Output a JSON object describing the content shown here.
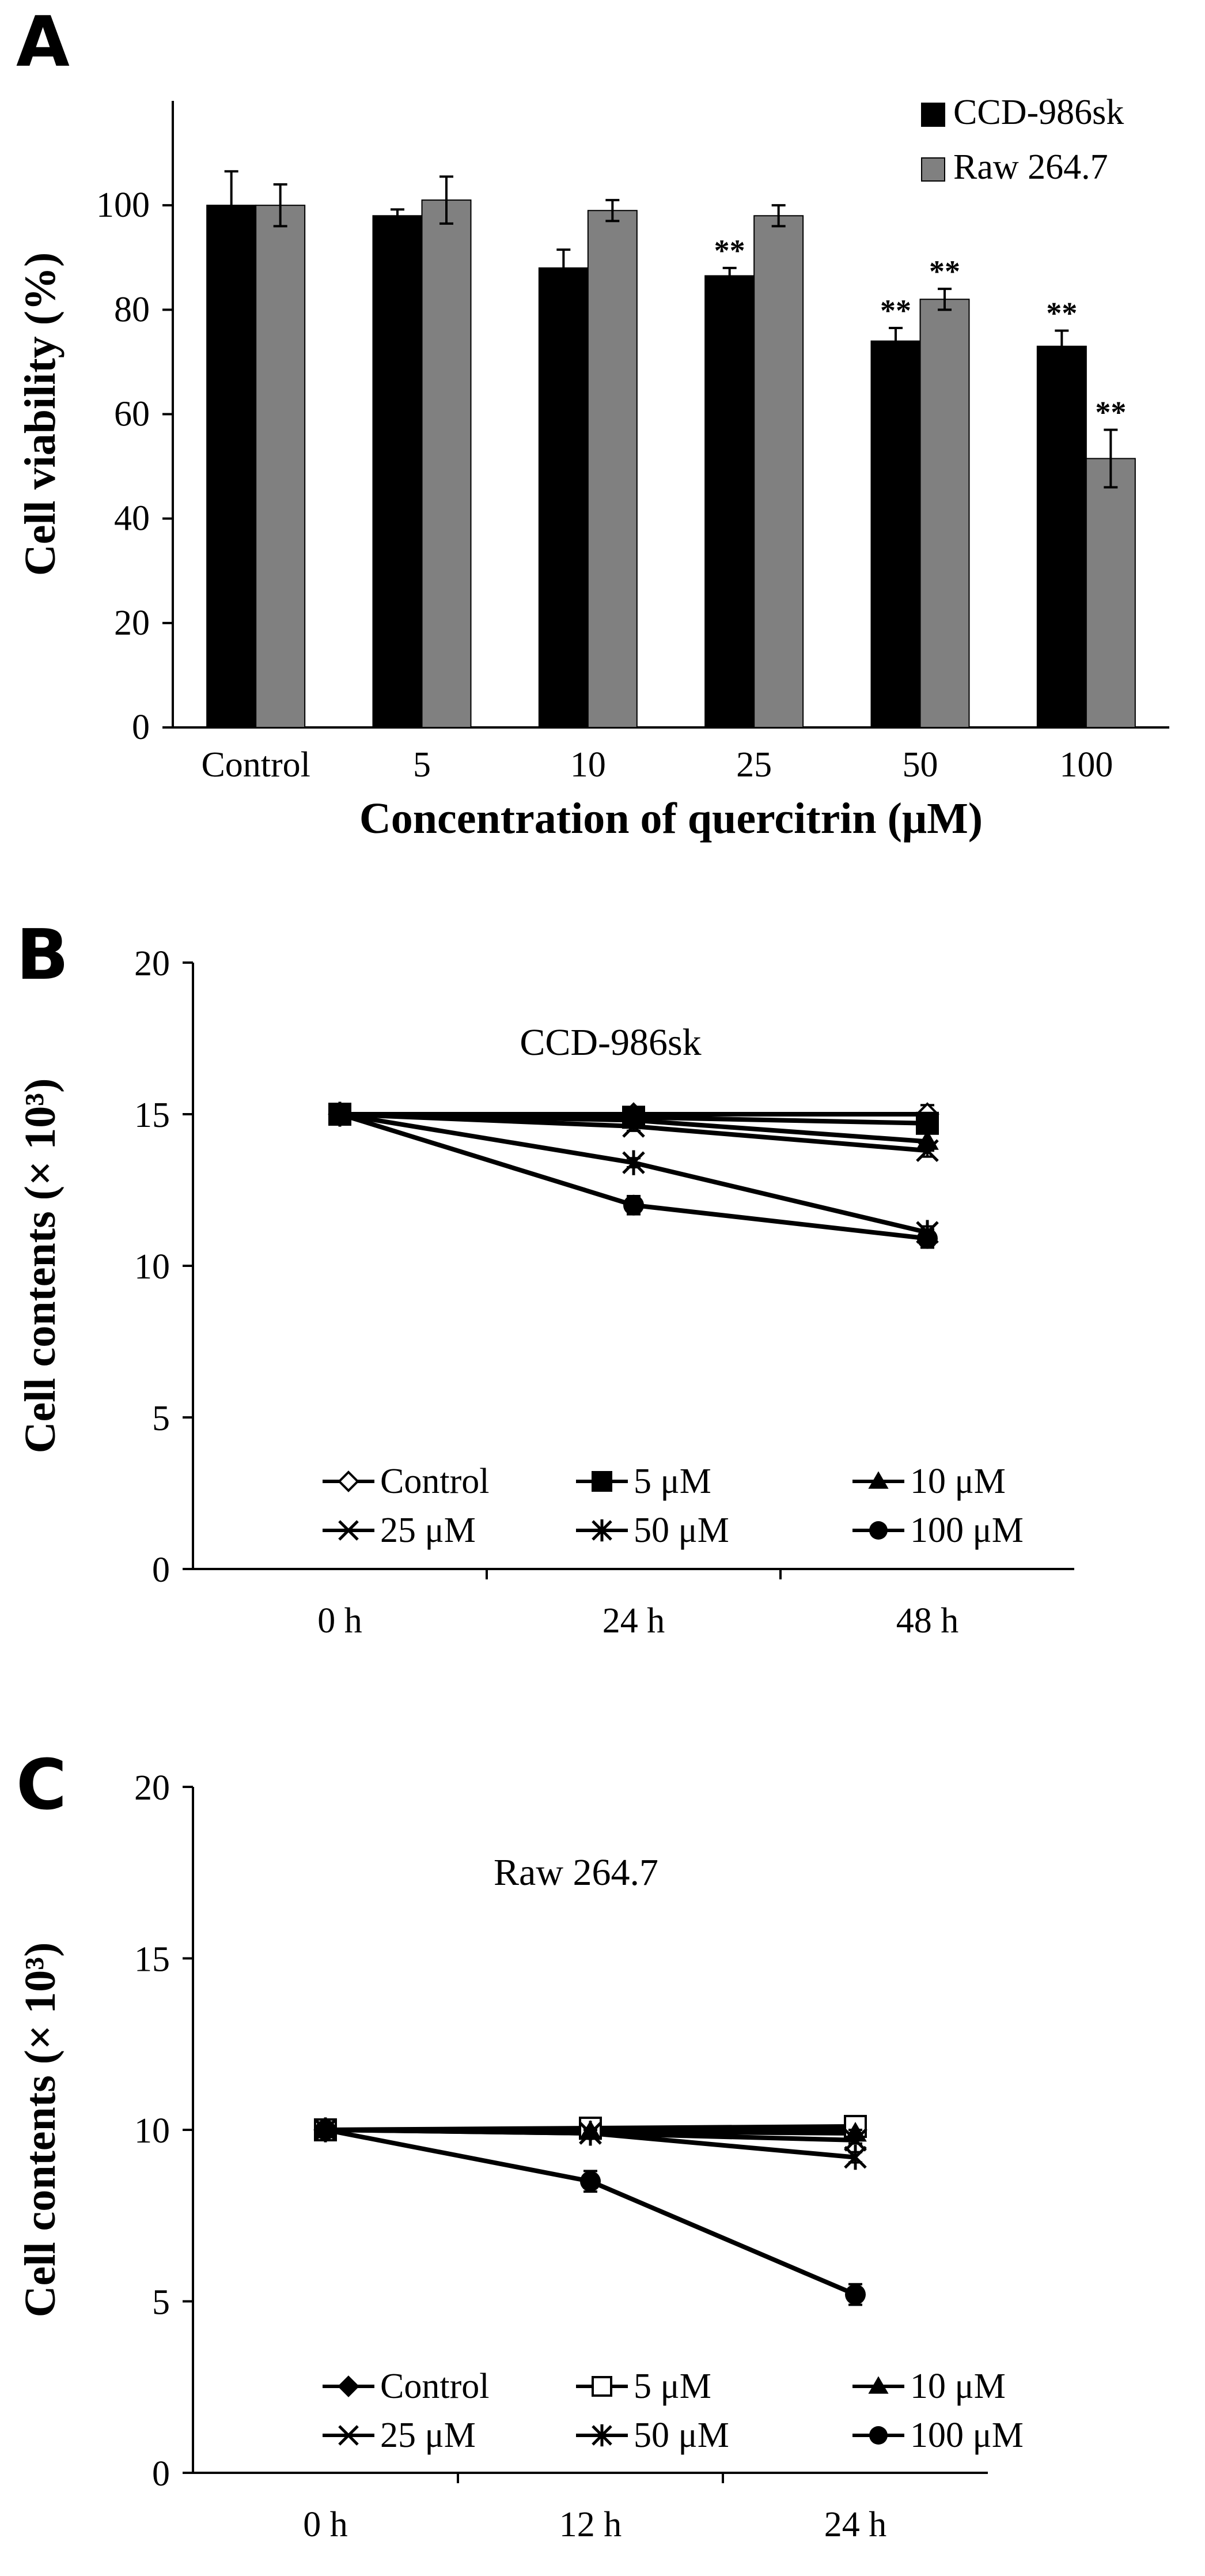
{
  "panels": {
    "A": "A",
    "B": "B",
    "C": "C"
  },
  "chart_data": [
    {
      "type": "bar",
      "title": "",
      "xlabel": "Concentration of quercitrin (μM)",
      "ylabel": "Cell viability (%)",
      "ylim": [
        0,
        120
      ],
      "yticks": [
        0,
        20,
        40,
        60,
        80,
        100
      ],
      "categories": [
        "Control",
        "5",
        "10",
        "25",
        "50",
        "100"
      ],
      "series": [
        {
          "name": "CCD-986sk",
          "color": "#000000",
          "values": [
            100,
            98,
            88,
            86.5,
            74,
            73
          ],
          "errors": [
            6.5,
            1.2,
            3.5,
            1.5,
            2.5,
            3.0
          ],
          "significance": [
            "",
            "",
            "",
            "**",
            "**",
            "**"
          ]
        },
        {
          "name": "Raw 264.7",
          "color": "#808080",
          "values": [
            100,
            101,
            99,
            98,
            82,
            51.5
          ],
          "errors": [
            4.0,
            4.5,
            2.0,
            2.0,
            2.0,
            5.5
          ],
          "significance": [
            "",
            "",
            "",
            "",
            "**",
            "**"
          ]
        }
      ],
      "legend_position": "top-right",
      "grid": false
    },
    {
      "type": "line",
      "title": "CCD-986sk",
      "xlabel": "",
      "ylabel": "Cell contents (× 10³)",
      "ylim": [
        0,
        20
      ],
      "yticks": [
        0,
        5,
        10,
        15,
        20
      ],
      "x": [
        "0 h",
        "24 h",
        "48 h"
      ],
      "series": [
        {
          "name": "Control",
          "marker": "diamond-open",
          "values": [
            15,
            15,
            15
          ],
          "errors": [
            0,
            0.1,
            0.3
          ]
        },
        {
          "name": "5 μM",
          "marker": "square",
          "values": [
            15,
            14.9,
            14.7
          ],
          "errors": [
            0,
            0.15,
            0.2
          ]
        },
        {
          "name": "10 μM",
          "marker": "triangle",
          "values": [
            15,
            14.8,
            14.1
          ],
          "errors": [
            0,
            0.1,
            0.3
          ]
        },
        {
          "name": "25 μM",
          "marker": "x",
          "values": [
            15,
            14.6,
            13.8
          ],
          "errors": [
            0,
            0.15,
            0.2
          ]
        },
        {
          "name": "50 μM",
          "marker": "star",
          "values": [
            15,
            13.4,
            11.1
          ],
          "errors": [
            0,
            0.15,
            0.2
          ]
        },
        {
          "name": "100 μM",
          "marker": "circle",
          "values": [
            15,
            12.0,
            10.9
          ],
          "errors": [
            0,
            0.3,
            0.3
          ]
        }
      ],
      "legend_position": "bottom",
      "grid": false
    },
    {
      "type": "line",
      "title": "Raw 264.7",
      "xlabel": "",
      "ylabel": "Cell contents (× 10³)",
      "ylim": [
        0,
        20
      ],
      "yticks": [
        0,
        5,
        10,
        15,
        20
      ],
      "x": [
        "0 h",
        "12 h",
        "24 h"
      ],
      "series": [
        {
          "name": "Control",
          "marker": "diamond",
          "values": [
            10,
            10.0,
            10.0
          ],
          "errors": [
            0,
            0.1,
            0.1
          ]
        },
        {
          "name": "5 μM",
          "marker": "square-open",
          "values": [
            10,
            10.05,
            10.1
          ],
          "errors": [
            0,
            0.1,
            0.1
          ]
        },
        {
          "name": "10 μM",
          "marker": "triangle",
          "values": [
            10,
            9.95,
            9.9
          ],
          "errors": [
            0,
            0.1,
            0.1
          ]
        },
        {
          "name": "25 μM",
          "marker": "x",
          "values": [
            10,
            9.9,
            9.7
          ],
          "errors": [
            0,
            0.1,
            0.1
          ]
        },
        {
          "name": "50 μM",
          "marker": "star",
          "values": [
            10,
            9.9,
            9.2
          ],
          "errors": [
            0,
            0.1,
            0.15
          ]
        },
        {
          "name": "100 μM",
          "marker": "circle",
          "values": [
            10,
            8.5,
            5.2
          ],
          "errors": [
            0,
            0.3,
            0.3
          ]
        }
      ],
      "legend_position": "bottom",
      "grid": false
    }
  ]
}
